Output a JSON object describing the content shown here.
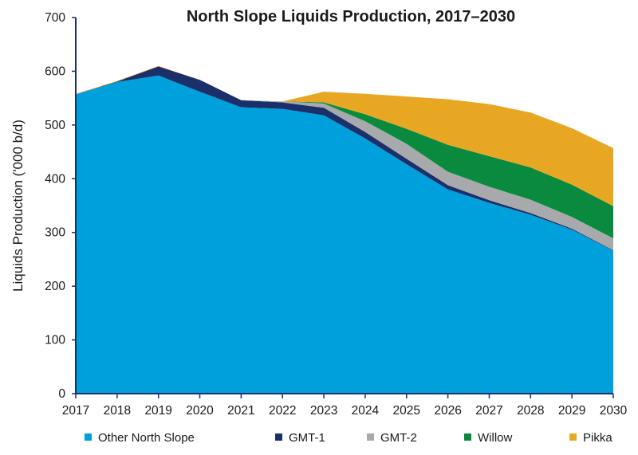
{
  "chart_data": {
    "type": "area",
    "stacked": true,
    "title": "North Slope Liquids Production, 2017–2030",
    "xlabel": "",
    "ylabel": "Liquids Production ('000 b/d)",
    "ylim": [
      0,
      700
    ],
    "yticks": [
      "0",
      "100",
      "200",
      "300",
      "400",
      "500",
      "600",
      "700"
    ],
    "ytick_values": [
      0,
      100,
      200,
      300,
      400,
      500,
      600,
      700
    ],
    "x": [
      "2017",
      "2018",
      "2019",
      "2020",
      "2021",
      "2022",
      "2023",
      "2024",
      "2025",
      "2026",
      "2027",
      "2028",
      "2029",
      "2030"
    ],
    "grid": false,
    "legend_position": "bottom",
    "series": [
      {
        "name": "Other North Slope",
        "color": "#00a0dc",
        "values": [
          557,
          580,
          592,
          562,
          533,
          530,
          518,
          475,
          427,
          380,
          355,
          333,
          305,
          266
        ]
      },
      {
        "name": "GMT-1",
        "color": "#1b2f6b",
        "values": [
          0,
          1,
          17,
          22,
          13,
          12,
          14,
          12,
          10,
          8,
          5,
          3,
          2,
          1
        ]
      },
      {
        "name": "GMT-2",
        "color": "#a7a9ac",
        "values": [
          0,
          0,
          0,
          0,
          0,
          2,
          8,
          20,
          28,
          25,
          25,
          25,
          22,
          22
        ]
      },
      {
        "name": "Willow",
        "color": "#0a8a3e",
        "values": [
          0,
          0,
          0,
          0,
          0,
          0,
          2,
          13,
          28,
          50,
          57,
          60,
          60,
          60
        ]
      },
      {
        "name": "Pikka",
        "color": "#e8a723",
        "values": [
          1,
          1,
          1,
          0,
          0,
          0,
          20,
          38,
          60,
          85,
          97,
          102,
          105,
          108
        ]
      }
    ],
    "axis_color": "#1b2f6b"
  }
}
